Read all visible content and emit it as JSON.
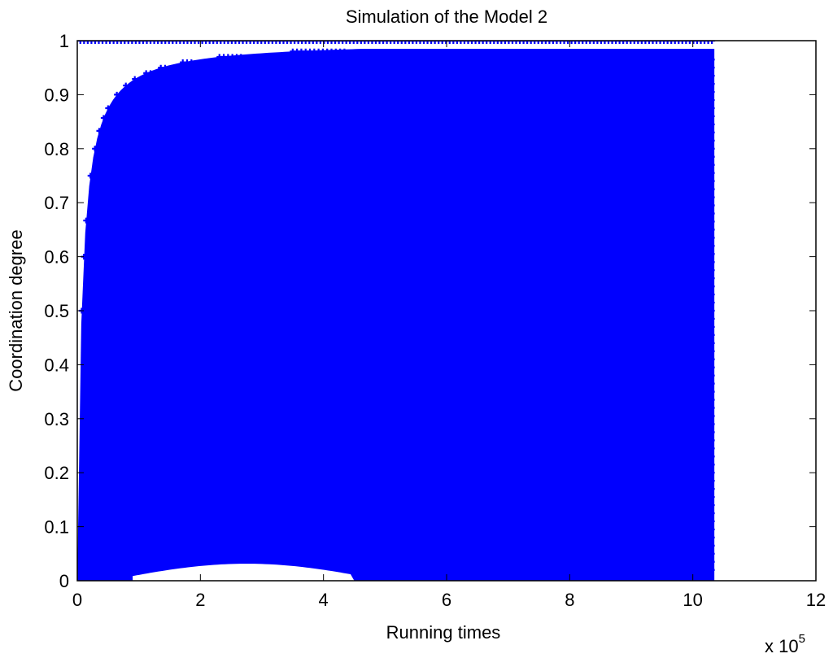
{
  "chart_data": {
    "type": "scatter",
    "title": "Simulation of the Model 2",
    "xlabel": "Running times",
    "ylabel": "Coordination degree",
    "x_exponent_label": "x 10",
    "x_exponent": "5",
    "xlim": [
      0,
      12
    ],
    "ylim": [
      0,
      1
    ],
    "xticks": [
      "0",
      "2",
      "4",
      "6",
      "8",
      "10",
      "12"
    ],
    "yticks": [
      "0",
      "0.1",
      "0.2",
      "0.3",
      "0.4",
      "0.5",
      "0.6",
      "0.7",
      "0.8",
      "0.9",
      "1"
    ],
    "grid": false,
    "marker": "+",
    "marker_color": "#0000FF",
    "x_max_data": 10.35,
    "series": [
      {
        "values": [
          {
            "x": 0.05,
            "y": 0.33
          },
          {
            "x": 0.1,
            "y": 0.5
          },
          {
            "x": 0.15,
            "y": 0.6
          },
          {
            "x": 0.2,
            "y": 0.67
          },
          {
            "x": 0.3,
            "y": 0.75
          },
          {
            "x": 0.4,
            "y": 0.8
          },
          {
            "x": 0.5,
            "y": 0.83
          },
          {
            "x": 0.7,
            "y": 0.86
          },
          {
            "x": 1.0,
            "y": 0.9
          },
          {
            "x": 1.5,
            "y": 0.93
          },
          {
            "x": 2.0,
            "y": 0.95
          },
          {
            "x": 3.0,
            "y": 0.96
          },
          {
            "x": 0.1,
            "y": 1.0
          },
          {
            "x": 5.0,
            "y": 1.0
          },
          {
            "x": 10.3,
            "y": 1.0
          },
          {
            "x": 1.0,
            "y": 0.02
          },
          {
            "x": 2.0,
            "y": 0.05
          },
          {
            "x": 3.0,
            "y": 0.07
          },
          {
            "x": 4.0,
            "y": 0.08
          },
          {
            "x": 10.3,
            "y": 0.0
          }
        ]
      }
    ]
  }
}
